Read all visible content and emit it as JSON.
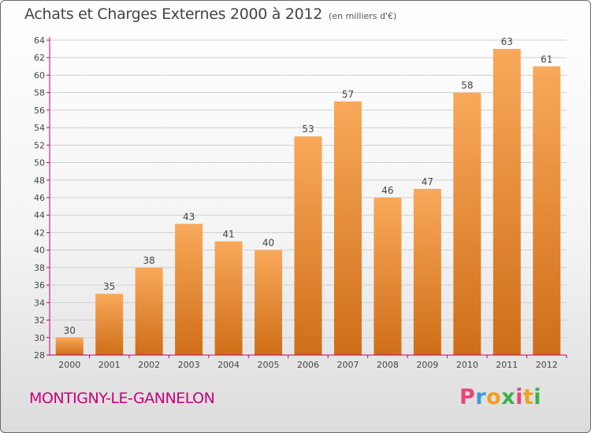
{
  "header": {
    "title": "Achats et Charges Externes 2000 à 2012",
    "subtitle": "(en milliers d'€)"
  },
  "footer": {
    "city": "MONTIGNY-LE-GANNELON",
    "logo": {
      "text": "Proxiti",
      "colors": [
        "#e8457a",
        "#3a9ad9",
        "#f0a020",
        "#3ab04a",
        "#e8457a",
        "#f0a020",
        "#3ab04a"
      ]
    }
  },
  "colors": {
    "bar_light": "#f9a95a",
    "bar_dark": "#cf6e18",
    "axis": "#c0006e",
    "grid": "#d0d0d0",
    "label": "#444444"
  },
  "chart_data": {
    "type": "bar",
    "categories": [
      "2000",
      "2001",
      "2002",
      "2003",
      "2004",
      "2005",
      "2006",
      "2007",
      "2008",
      "2009",
      "2010",
      "2011",
      "2012"
    ],
    "values": [
      30,
      35,
      38,
      43,
      41,
      40,
      53,
      57,
      46,
      47,
      58,
      63,
      61
    ],
    "ylim": [
      28,
      64
    ],
    "yticks": [
      28,
      30,
      32,
      34,
      36,
      38,
      40,
      42,
      44,
      46,
      48,
      50,
      52,
      54,
      56,
      58,
      60,
      62,
      64
    ],
    "grid": true,
    "data_labels": true
  }
}
